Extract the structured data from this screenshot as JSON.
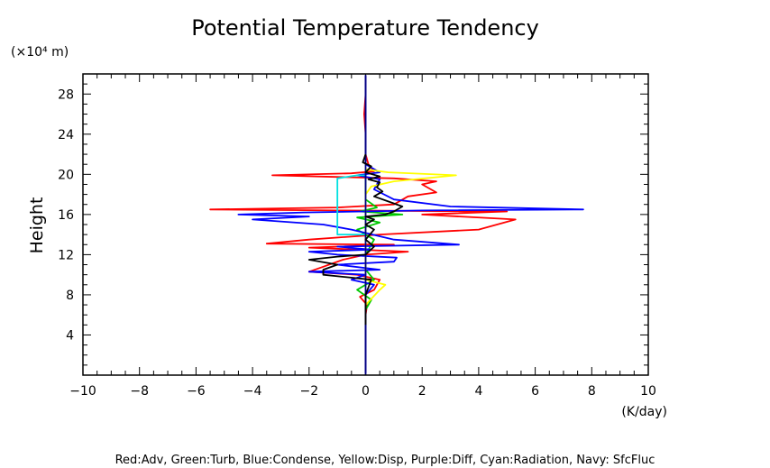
{
  "chart_data": {
    "type": "line",
    "title": "Potential Temperature Tendency",
    "xlabel": "(K/day)",
    "ylabel": "Height",
    "yunit": "(×10⁴ m)",
    "footer": "Red:Adv, Green:Turb, Blue:Condense, Yellow:Disp, Purple:Diff, Cyan:Radiation, Navy: SfcFluc",
    "xlim": [
      -10,
      10
    ],
    "ylim": [
      0,
      30
    ],
    "xticks": [
      -10,
      -8,
      -6,
      -4,
      -2,
      0,
      2,
      4,
      6,
      8,
      10
    ],
    "yticks": [
      4,
      8,
      12,
      16,
      20,
      24,
      28
    ],
    "grid": false,
    "series": [
      {
        "name": "Adv",
        "color": "#ff0000",
        "points": [
          [
            0,
            0.2
          ],
          [
            0,
            3
          ],
          [
            0,
            6
          ],
          [
            0.05,
            7
          ],
          [
            -0.2,
            7.8
          ],
          [
            0.3,
            8.5
          ],
          [
            0.5,
            9.5
          ],
          [
            -0.3,
            10
          ],
          [
            -2,
            10.3
          ],
          [
            -1.5,
            10.8
          ],
          [
            -0.8,
            11.5
          ],
          [
            0,
            12
          ],
          [
            1.5,
            12.3
          ],
          [
            -2,
            12.7
          ],
          [
            1,
            13
          ],
          [
            -3.5,
            13.1
          ],
          [
            -2,
            13.5
          ],
          [
            0.5,
            14
          ],
          [
            4,
            14.5
          ],
          [
            5.3,
            15.5
          ],
          [
            2,
            16
          ],
          [
            5,
            16.3
          ],
          [
            -1,
            16.4
          ],
          [
            -5.5,
            16.5
          ],
          [
            -1,
            16.7
          ],
          [
            1,
            17
          ],
          [
            1.5,
            17.8
          ],
          [
            2.5,
            18.2
          ],
          [
            2,
            19
          ],
          [
            2.5,
            19.3
          ],
          [
            1,
            19.6
          ],
          [
            -3.3,
            19.9
          ],
          [
            -0.5,
            20.1
          ],
          [
            0.3,
            20.3
          ],
          [
            0.1,
            21
          ],
          [
            0,
            22
          ],
          [
            0,
            24
          ],
          [
            -0.05,
            26
          ],
          [
            0,
            28
          ],
          [
            0,
            29.8
          ]
        ]
      },
      {
        "name": "Turb",
        "color": "#00c800",
        "points": [
          [
            0,
            6.5
          ],
          [
            0.2,
            7.5
          ],
          [
            -0.3,
            8.5
          ],
          [
            0.3,
            9.5
          ],
          [
            0,
            10.5
          ],
          [
            0,
            12
          ],
          [
            0.3,
            13.5
          ],
          [
            -0.3,
            14.5
          ],
          [
            0.5,
            15.2
          ],
          [
            -0.3,
            15.7
          ],
          [
            1.3,
            16
          ],
          [
            -0.2,
            16.3
          ],
          [
            0.4,
            16.7
          ],
          [
            0,
            17.5
          ],
          [
            0,
            19
          ],
          [
            0,
            20
          ]
        ]
      },
      {
        "name": "Condense",
        "color": "#0000ff",
        "points": [
          [
            0,
            0.2
          ],
          [
            0,
            6
          ],
          [
            0,
            8
          ],
          [
            0.3,
            9
          ],
          [
            -0.5,
            9.5
          ],
          [
            0,
            10
          ],
          [
            -2,
            10.3
          ],
          [
            0.5,
            10.5
          ],
          [
            -1,
            11
          ],
          [
            1,
            11.3
          ],
          [
            1.1,
            11.7
          ],
          [
            -1,
            12
          ],
          [
            -2,
            12.3
          ],
          [
            0.2,
            12.5
          ],
          [
            -1,
            12.8
          ],
          [
            3.3,
            13
          ],
          [
            1,
            13.5
          ],
          [
            -0.5,
            14.5
          ],
          [
            -1.5,
            15
          ],
          [
            -4,
            15.5
          ],
          [
            -2,
            15.8
          ],
          [
            -4.5,
            16
          ],
          [
            -2.2,
            16.2
          ],
          [
            2,
            16.4
          ],
          [
            7.7,
            16.5
          ],
          [
            3,
            16.8
          ],
          [
            1,
            17.5
          ],
          [
            0.3,
            18.5
          ],
          [
            0.5,
            19.5
          ],
          [
            -0.3,
            19.9
          ],
          [
            0.5,
            20.2
          ],
          [
            0,
            21
          ],
          [
            0,
            25
          ],
          [
            0,
            29.8
          ]
        ]
      },
      {
        "name": "Disp",
        "color": "#ffff00",
        "points": [
          [
            0,
            7
          ],
          [
            0.5,
            8.5
          ],
          [
            0.7,
            9
          ],
          [
            0,
            9.5
          ],
          [
            0,
            18
          ],
          [
            0.2,
            18.8
          ],
          [
            1,
            19.3
          ],
          [
            3.2,
            19.9
          ],
          [
            0.8,
            20.2
          ],
          [
            0,
            20.5
          ]
        ]
      },
      {
        "name": "Radiation",
        "color": "#00e0e0",
        "points": [
          [
            0,
            14
          ],
          [
            -1,
            14
          ],
          [
            -1,
            19.6
          ],
          [
            -0.3,
            19.9
          ],
          [
            0,
            19.9
          ]
        ]
      },
      {
        "name": "SfcFluc",
        "color": "#000080",
        "points": [
          [
            0,
            0
          ],
          [
            0,
            29.9
          ]
        ]
      },
      {
        "name": "",
        "color": "#000000",
        "points": [
          [
            0,
            5
          ],
          [
            0,
            8
          ],
          [
            0.2,
            9.5
          ],
          [
            -1.5,
            10
          ],
          [
            -1.5,
            10.5
          ],
          [
            -1,
            11
          ],
          [
            -2,
            11.5
          ],
          [
            -1,
            11.8
          ],
          [
            0,
            12
          ],
          [
            0.3,
            12.8
          ],
          [
            0,
            13.5
          ],
          [
            0.3,
            14.5
          ],
          [
            0,
            15
          ],
          [
            0.3,
            15.5
          ],
          [
            0,
            15.8
          ],
          [
            0.7,
            16
          ],
          [
            1,
            16.3
          ],
          [
            1.3,
            16.8
          ],
          [
            0.8,
            17.3
          ],
          [
            0.3,
            17.8
          ],
          [
            0.6,
            18.3
          ],
          [
            0.4,
            18.7
          ],
          [
            0.5,
            19.2
          ],
          [
            0.1,
            19.5
          ],
          [
            0.5,
            19.8
          ],
          [
            0,
            20.2
          ],
          [
            0.2,
            20.8
          ],
          [
            -0.1,
            21.2
          ],
          [
            0,
            22
          ]
        ]
      }
    ]
  }
}
